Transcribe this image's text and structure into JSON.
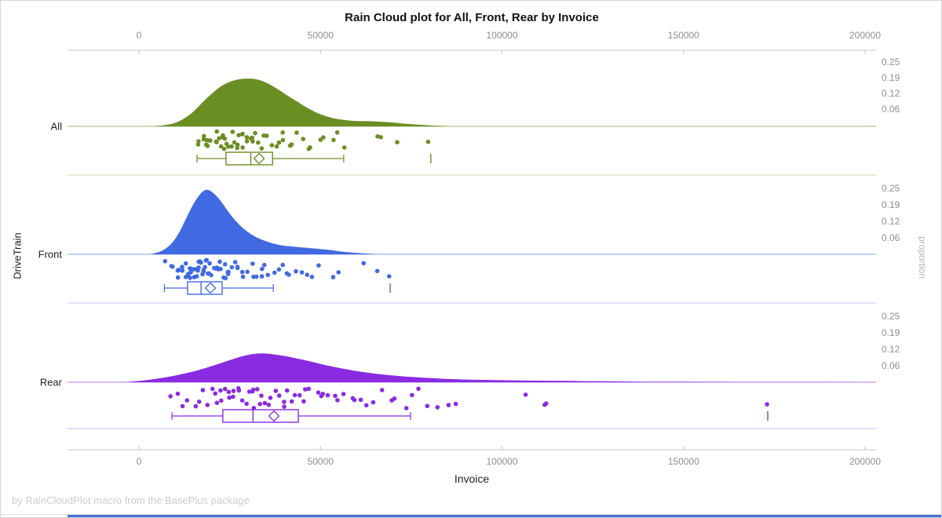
{
  "page": {
    "credit": "by RainCloudPlot macro from the BasePlus package"
  },
  "accents": {
    "background": "#ffffff",
    "border": "#d6d6d6",
    "axis_line": "#c6c6c6",
    "tick_label_color": "#8f8f8f",
    "footer_text_color": "#cccccc",
    "bottom_bar_color": "#4a70d6"
  },
  "chart_data": {
    "type": "raincloud",
    "title": "Rain Cloud plot for All, Front, Rear by Invoice",
    "xlabel": "Invoice",
    "ylabel": "DriveTrain",
    "y2label": "proportion",
    "x_ticks": [
      0,
      50000,
      100000,
      150000,
      200000
    ],
    "x_range": [
      0,
      200000
    ],
    "proportion_ticks": [
      "0.25",
      "0.19",
      "0.12",
      "0.06"
    ],
    "grid": false,
    "legend": "none",
    "groups": [
      {
        "label": "All",
        "color": "#6B8E23",
        "density": [
          [
            4000,
            0
          ],
          [
            8000,
            0.03
          ],
          [
            10000,
            0.07
          ],
          [
            12000,
            0.14
          ],
          [
            14000,
            0.24
          ],
          [
            16000,
            0.38
          ],
          [
            18000,
            0.54
          ],
          [
            20000,
            0.68
          ],
          [
            22000,
            0.81
          ],
          [
            24000,
            0.9
          ],
          [
            26000,
            0.96
          ],
          [
            28000,
            0.99
          ],
          [
            30000,
            1.0
          ],
          [
            32000,
            0.99
          ],
          [
            34000,
            0.95
          ],
          [
            36000,
            0.88
          ],
          [
            38000,
            0.79
          ],
          [
            40000,
            0.69
          ],
          [
            42000,
            0.59
          ],
          [
            44000,
            0.5
          ],
          [
            46000,
            0.4
          ],
          [
            48000,
            0.32
          ],
          [
            50000,
            0.25
          ],
          [
            52000,
            0.2
          ],
          [
            54000,
            0.16
          ],
          [
            56000,
            0.14
          ],
          [
            58000,
            0.12
          ],
          [
            60000,
            0.11
          ],
          [
            62000,
            0.11
          ],
          [
            64000,
            0.105
          ],
          [
            66000,
            0.1
          ],
          [
            68000,
            0.09
          ],
          [
            70000,
            0.08
          ],
          [
            72000,
            0.065
          ],
          [
            74000,
            0.05
          ],
          [
            76000,
            0.04
          ],
          [
            78000,
            0.03
          ],
          [
            80000,
            0.02
          ],
          [
            83000,
            0.01
          ],
          [
            86000,
            0
          ]
        ],
        "points": [
          15700,
          16600,
          17400,
          18000,
          18500,
          19000,
          19400,
          19900,
          20300,
          20700,
          21100,
          21500,
          21900,
          22300,
          22700,
          23100,
          23500,
          23900,
          24300,
          24800,
          25200,
          25600,
          26100,
          26500,
          27000,
          27500,
          28000,
          28500,
          29000,
          29600,
          30200,
          30800,
          31400,
          32000,
          32700,
          33400,
          34100,
          34900,
          35700,
          36500,
          37400,
          38300,
          39200,
          40200,
          41300,
          42500,
          43700,
          45000,
          46400,
          47900,
          49500,
          51200,
          53000,
          55000,
          56200,
          65100,
          66200,
          71600,
          80400
        ],
        "box": {
          "whisker_low": 16000,
          "q1": 24000,
          "median": 30800,
          "mean": 33100,
          "q3": 36800,
          "whisker_high": 56400,
          "outliers": [
            80400
          ]
        }
      },
      {
        "label": "Front",
        "color": "#4169E1",
        "density": [
          [
            3000,
            0
          ],
          [
            5000,
            0.02
          ],
          [
            7000,
            0.07
          ],
          [
            9000,
            0.16
          ],
          [
            11000,
            0.32
          ],
          [
            13000,
            0.55
          ],
          [
            15000,
            0.78
          ],
          [
            17000,
            0.94
          ],
          [
            18500,
            1.0
          ],
          [
            20000,
            0.97
          ],
          [
            22000,
            0.86
          ],
          [
            24000,
            0.7
          ],
          [
            26000,
            0.55
          ],
          [
            28000,
            0.43
          ],
          [
            30000,
            0.34
          ],
          [
            32000,
            0.27
          ],
          [
            34000,
            0.22
          ],
          [
            36000,
            0.18
          ],
          [
            38000,
            0.15
          ],
          [
            40000,
            0.13
          ],
          [
            42000,
            0.12
          ],
          [
            44000,
            0.11
          ],
          [
            46000,
            0.1
          ],
          [
            48000,
            0.09
          ],
          [
            50000,
            0.08
          ],
          [
            52000,
            0.07
          ],
          [
            54000,
            0.055
          ],
          [
            56000,
            0.04
          ],
          [
            58000,
            0.03
          ],
          [
            60000,
            0.02
          ],
          [
            63000,
            0.01
          ],
          [
            66000,
            0
          ]
        ],
        "points": [
          7000,
          8500,
          9400,
          10000,
          10500,
          10900,
          11300,
          11700,
          12000,
          12400,
          12700,
          13000,
          13300,
          13600,
          13900,
          14200,
          14500,
          14800,
          15000,
          15300,
          15600,
          15800,
          16100,
          16400,
          16600,
          16900,
          17200,
          17400,
          17700,
          18000,
          18300,
          18600,
          18900,
          19200,
          19500,
          19800,
          20100,
          20400,
          20700,
          21000,
          21400,
          21800,
          22200,
          22600,
          23000,
          23400,
          23900,
          24400,
          24900,
          25400,
          25900,
          26500,
          27100,
          27700,
          28400,
          29100,
          29800,
          30600,
          31400,
          32200,
          33100,
          34000,
          35000,
          36000,
          37100,
          38200,
          39400,
          40700,
          42000,
          43400,
          44900,
          46500,
          48200,
          50000,
          52800,
          55500,
          61600,
          65000,
          69200
        ],
        "box": {
          "whisker_low": 7000,
          "q1": 13400,
          "median": 17100,
          "mean": 19700,
          "q3": 22900,
          "whisker_high": 37000,
          "outliers": [
            69200
          ]
        }
      },
      {
        "label": "Rear",
        "color": "#8A2BE2",
        "density": [
          [
            -4000,
            0
          ],
          [
            0,
            0.04
          ],
          [
            4000,
            0.1
          ],
          [
            8000,
            0.18
          ],
          [
            12000,
            0.28
          ],
          [
            16000,
            0.4
          ],
          [
            20000,
            0.55
          ],
          [
            24000,
            0.72
          ],
          [
            28000,
            0.88
          ],
          [
            31000,
            0.97
          ],
          [
            33500,
            1.0
          ],
          [
            36000,
            0.98
          ],
          [
            39000,
            0.93
          ],
          [
            42000,
            0.86
          ],
          [
            45000,
            0.78
          ],
          [
            48000,
            0.69
          ],
          [
            51000,
            0.6
          ],
          [
            54000,
            0.52
          ],
          [
            57000,
            0.45
          ],
          [
            60000,
            0.38
          ],
          [
            63000,
            0.33
          ],
          [
            66000,
            0.28
          ],
          [
            70000,
            0.23
          ],
          [
            74000,
            0.19
          ],
          [
            78000,
            0.16
          ],
          [
            82000,
            0.13
          ],
          [
            86000,
            0.11
          ],
          [
            90000,
            0.09
          ],
          [
            95000,
            0.08
          ],
          [
            100000,
            0.07
          ],
          [
            105000,
            0.06
          ],
          [
            110000,
            0.055
          ],
          [
            115000,
            0.05
          ],
          [
            120000,
            0.04
          ],
          [
            125000,
            0.035
          ],
          [
            130000,
            0.03
          ],
          [
            135000,
            0.025
          ],
          [
            140000,
            0.02
          ],
          [
            150000,
            0.015
          ],
          [
            160000,
            0.01
          ],
          [
            170000,
            0.008
          ],
          [
            180000,
            0.006
          ],
          [
            190000,
            0.004
          ],
          [
            200000,
            0.002
          ]
        ],
        "points": [
          8600,
          10500,
          12000,
          13500,
          15000,
          16300,
          17500,
          18600,
          19600,
          20500,
          21400,
          22200,
          23000,
          23800,
          24500,
          25200,
          25900,
          26600,
          27300,
          28000,
          28700,
          29400,
          30100,
          30800,
          31500,
          32200,
          32900,
          33600,
          34400,
          35200,
          36000,
          36800,
          37600,
          38500,
          39400,
          40300,
          41200,
          42200,
          43200,
          44200,
          45300,
          46400,
          47500,
          48700,
          49900,
          51200,
          52500,
          53900,
          55300,
          56800,
          58300,
          59900,
          61600,
          63300,
          65100,
          67000,
          69000,
          71000,
          73100,
          75300,
          77600,
          80000,
          82500,
          85100,
          87800,
          107200,
          111100,
          112700,
          173200
        ],
        "box": {
          "whisker_low": 9100,
          "q1": 23100,
          "median": 31400,
          "mean": 37200,
          "q3": 43900,
          "whisker_high": 74800,
          "outliers": [
            173200
          ]
        }
      }
    ]
  }
}
